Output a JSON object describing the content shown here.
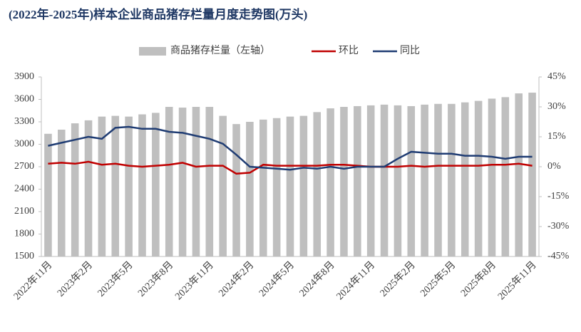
{
  "chart_data": {
    "type": "bar_line",
    "title": "(2022年-2025年)样本企业商品猪存栏量月度走势图(万头)",
    "categories": [
      "2022年11月",
      null,
      null,
      "2023年2月",
      null,
      null,
      "2023年5月",
      null,
      null,
      "2023年8月",
      null,
      null,
      "2023年11月",
      null,
      null,
      "2024年2月",
      null,
      null,
      "2024年5月",
      null,
      null,
      "2024年8月",
      null,
      null,
      "2024年11月",
      null,
      null,
      "2025年2月",
      null,
      null,
      "2025年5月",
      null,
      null,
      "2025年8月",
      null,
      null,
      "2025年11月"
    ],
    "series": [
      {
        "name": "商品猪存栏量（左轴）",
        "color": "#bfbfbf",
        "kind": "bar",
        "values": [
          3140,
          3195,
          3280,
          3320,
          3370,
          3380,
          3370,
          3400,
          3420,
          3500,
          3490,
          3500,
          3500,
          3380,
          3270,
          3300,
          3330,
          3350,
          3370,
          3380,
          3430,
          3480,
          3500,
          3510,
          3520,
          3530,
          3520,
          3510,
          3530,
          3540,
          3540,
          3560,
          3580,
          3610,
          3630,
          3680,
          3690
        ]
      },
      {
        "name": "环比",
        "color": "#c00000",
        "kind": "line",
        "axis": "y2",
        "values": [
          1.5,
          2,
          1.5,
          2.5,
          1,
          1.5,
          0.5,
          0,
          0.5,
          1,
          2,
          0,
          0.5,
          0.5,
          -3.5,
          -3,
          1,
          0.5,
          0.5,
          0.5,
          0.5,
          1,
          1,
          0.5,
          0,
          0,
          0,
          0.5,
          0,
          0.5,
          0.5,
          0.5,
          0.5,
          1,
          1,
          1.5,
          0.5
        ]
      },
      {
        "name": "同比",
        "color": "#1f3c73",
        "kind": "line",
        "axis": "y2",
        "values": [
          10.5,
          12,
          13.5,
          15,
          14,
          19.5,
          20,
          19,
          19,
          17.5,
          17,
          15.5,
          14,
          11.5,
          6,
          0,
          -0.5,
          -1,
          -1.5,
          -0.5,
          -1,
          0,
          -1,
          0,
          0,
          0,
          4,
          7.5,
          7,
          6.5,
          6.5,
          5.5,
          5.5,
          5,
          4,
          5,
          5
        ]
      }
    ],
    "ylim": [
      1500,
      3900
    ],
    "yticks": [
      1500,
      1800,
      2100,
      2400,
      2700,
      3000,
      3300,
      3600,
      3900
    ],
    "y2lim": [
      -45,
      45
    ],
    "y2ticks": [
      {
        "value": -45,
        "label": "-45%"
      },
      {
        "value": -30,
        "label": "-30%"
      },
      {
        "value": -15,
        "label": "-15%"
      },
      {
        "value": 0,
        "label": "0%"
      },
      {
        "value": 15,
        "label": "15%"
      },
      {
        "value": 30,
        "label": "30%"
      },
      {
        "value": 45,
        "label": "45%"
      }
    ]
  }
}
